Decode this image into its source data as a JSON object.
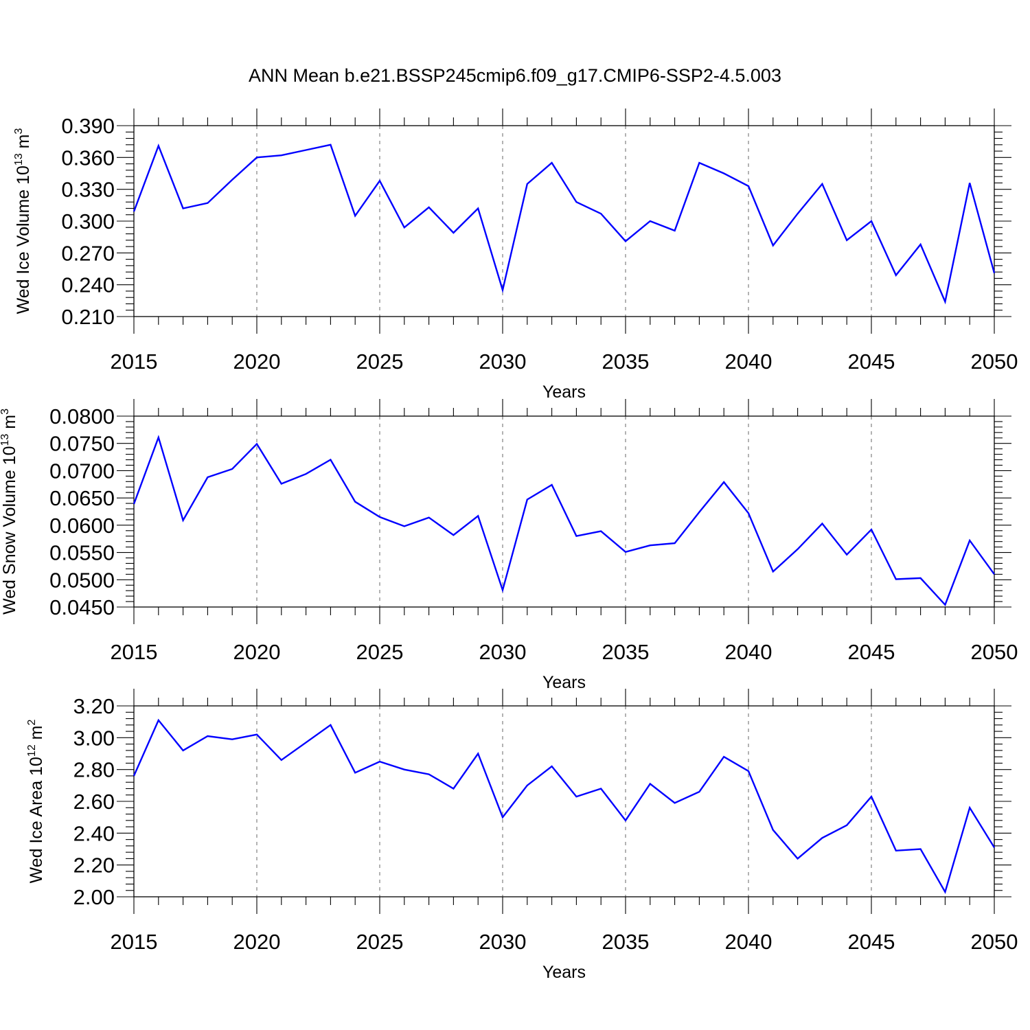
{
  "title": "ANN Mean b.e21.BSSP245cmip6.f09_g17.CMIP6-SSP2-4.5.003",
  "colors": {
    "line": "#0000ff",
    "grid": "#808080",
    "frame": "#000000"
  },
  "chart_data": [
    {
      "type": "line",
      "title": "ANN Mean b.e21.BSSP245cmip6.f09_g17.CMIP6-SSP2-4.5.003",
      "ylabel": {
        "text": "Wed Ice Volume 10",
        "exp": "13",
        "unit": " m",
        "unit_exp": "3"
      },
      "xlabel": "Years",
      "xlim": [
        2015,
        2050
      ],
      "ylim": [
        0.21,
        0.39
      ],
      "x_ticks": [
        "2015",
        "2020",
        "2025",
        "2030",
        "2035",
        "2040",
        "2045",
        "2050"
      ],
      "y_ticks": [
        "0.210",
        "0.240",
        "0.270",
        "0.300",
        "0.330",
        "0.360",
        "0.390"
      ],
      "y_tick_values": [
        0.21,
        0.24,
        0.27,
        0.3,
        0.33,
        0.36,
        0.39
      ],
      "grid": "vertical dashed at major x ticks",
      "x": [
        2015,
        2016,
        2017,
        2018,
        2019,
        2020,
        2021,
        2022,
        2023,
        2024,
        2025,
        2026,
        2027,
        2028,
        2029,
        2030,
        2031,
        2032,
        2033,
        2034,
        2035,
        2036,
        2037,
        2038,
        2039,
        2040,
        2041,
        2042,
        2043,
        2044,
        2045,
        2046,
        2047,
        2048,
        2049,
        2050
      ],
      "values": [
        0.309,
        0.371,
        0.312,
        0.317,
        0.339,
        0.36,
        0.362,
        0.367,
        0.372,
        0.305,
        0.338,
        0.294,
        0.313,
        0.289,
        0.312,
        0.235,
        0.335,
        0.355,
        0.318,
        0.307,
        0.281,
        0.3,
        0.291,
        0.355,
        0.345,
        0.333,
        0.277,
        0.307,
        0.335,
        0.282,
        0.3,
        0.249,
        0.278,
        0.224,
        0.336,
        0.251
      ]
    },
    {
      "type": "line",
      "ylabel": {
        "text": "Wed Snow Volume 10",
        "exp": "13",
        "unit": " m",
        "unit_exp": "3"
      },
      "xlabel": "Years",
      "xlim": [
        2015,
        2050
      ],
      "ylim": [
        0.045,
        0.08
      ],
      "x_ticks": [
        "2015",
        "2020",
        "2025",
        "2030",
        "2035",
        "2040",
        "2045",
        "2050"
      ],
      "y_ticks": [
        "0.0450",
        "0.0500",
        "0.0550",
        "0.0600",
        "0.0650",
        "0.0700",
        "0.0750",
        "0.0800"
      ],
      "y_tick_values": [
        0.045,
        0.05,
        0.055,
        0.06,
        0.065,
        0.07,
        0.075,
        0.08
      ],
      "grid": "vertical dashed at major x ticks",
      "x": [
        2015,
        2016,
        2017,
        2018,
        2019,
        2020,
        2021,
        2022,
        2023,
        2024,
        2025,
        2026,
        2027,
        2028,
        2029,
        2030,
        2031,
        2032,
        2033,
        2034,
        2035,
        2036,
        2037,
        2038,
        2039,
        2040,
        2041,
        2042,
        2043,
        2044,
        2045,
        2046,
        2047,
        2048,
        2049,
        2050
      ],
      "values": [
        0.0639,
        0.0761,
        0.0609,
        0.0688,
        0.0703,
        0.0749,
        0.0676,
        0.0694,
        0.072,
        0.0643,
        0.0615,
        0.0598,
        0.0614,
        0.0582,
        0.0617,
        0.0481,
        0.0647,
        0.0674,
        0.058,
        0.0589,
        0.0551,
        0.0563,
        0.0567,
        0.0624,
        0.0679,
        0.0622,
        0.0515,
        0.0556,
        0.0603,
        0.0546,
        0.0592,
        0.0501,
        0.0503,
        0.0454,
        0.0572,
        0.051
      ]
    },
    {
      "type": "line",
      "ylabel": {
        "text": "Wed Ice Area 10",
        "exp": "12",
        "unit": " m",
        "unit_exp": "2"
      },
      "xlabel": "Years",
      "xlim": [
        2015,
        2050
      ],
      "ylim": [
        2.0,
        3.2
      ],
      "x_ticks": [
        "2015",
        "2020",
        "2025",
        "2030",
        "2035",
        "2040",
        "2045",
        "2050"
      ],
      "y_ticks": [
        "2.00",
        "2.20",
        "2.40",
        "2.60",
        "2.80",
        "3.00",
        "3.20"
      ],
      "y_tick_values": [
        2.0,
        2.2,
        2.4,
        2.6,
        2.8,
        3.0,
        3.2
      ],
      "grid": "vertical dashed at major x ticks",
      "x": [
        2015,
        2016,
        2017,
        2018,
        2019,
        2020,
        2021,
        2022,
        2023,
        2024,
        2025,
        2026,
        2027,
        2028,
        2029,
        2030,
        2031,
        2032,
        2033,
        2034,
        2035,
        2036,
        2037,
        2038,
        2039,
        2040,
        2041,
        2042,
        2043,
        2044,
        2045,
        2046,
        2047,
        2048,
        2049,
        2050
      ],
      "values": [
        2.76,
        3.11,
        2.92,
        3.01,
        2.99,
        3.02,
        2.86,
        2.97,
        3.08,
        2.78,
        2.85,
        2.8,
        2.77,
        2.68,
        2.9,
        2.5,
        2.7,
        2.82,
        2.63,
        2.68,
        2.48,
        2.71,
        2.59,
        2.66,
        2.88,
        2.79,
        2.42,
        2.24,
        2.37,
        2.45,
        2.63,
        2.29,
        2.3,
        2.03,
        2.56,
        2.31
      ]
    }
  ]
}
